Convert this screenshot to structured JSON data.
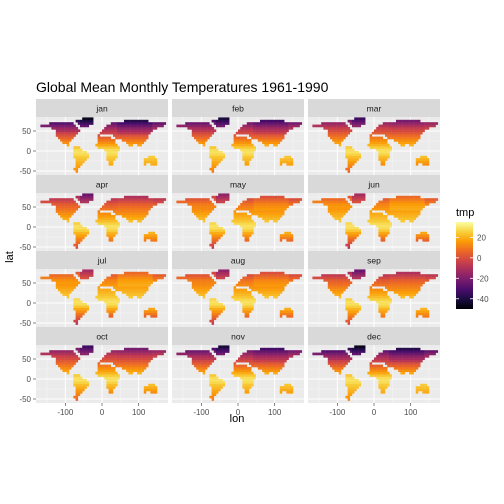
{
  "chart_data": {
    "type": "heatmap",
    "title": "Global Mean Monthly Temperatures 1961-1990",
    "xlabel": "lon",
    "ylabel": "lat",
    "xlim": [
      -180,
      180
    ],
    "ylim": [
      -60,
      85
    ],
    "x_ticks": [
      -100,
      0,
      100
    ],
    "y_ticks": [
      50,
      0,
      -50
    ],
    "x_tick_labels": [
      "-100",
      "0",
      "100"
    ],
    "y_tick_labels": [
      "50",
      "0",
      "-50"
    ],
    "panels": [
      "jan",
      "feb",
      "mar",
      "apr",
      "may",
      "jun",
      "jul",
      "aug",
      "sep",
      "oct",
      "nov",
      "dec"
    ],
    "facet_layout": {
      "ncol": 3,
      "nrow": 4
    },
    "legend": {
      "title": "tmp",
      "placement": "right",
      "range": [
        -50,
        35
      ],
      "ticks": [
        20,
        0,
        -20,
        -40
      ],
      "tick_labels": [
        "20",
        "0",
        "-20",
        "-40"
      ],
      "colormap": "inferno",
      "colors": [
        "#000004",
        "#1b0c41",
        "#4a0c6b",
        "#781c6d",
        "#a52c60",
        "#cf4446",
        "#ed6925",
        "#fb9b06",
        "#f7d13d",
        "#fcffa4"
      ]
    },
    "grid": true,
    "panel_background": "#ebebeb",
    "strip_background": "#d9d9d9"
  }
}
